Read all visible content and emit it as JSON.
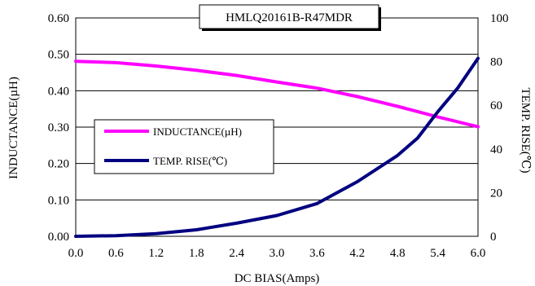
{
  "chart_data": {
    "type": "line",
    "title": "HMLQ20161B-R47MDR",
    "xlabel": "DC BIAS(Amps)",
    "ylabel_left": "INDUCTANCE(µH)",
    "ylabel_right": "TEMP. RISE(℃)",
    "xlim": [
      0,
      6
    ],
    "ylim_left": [
      0,
      0.6
    ],
    "ylim_right": [
      0,
      100
    ],
    "x_ticks": [
      "0.0",
      "0.6",
      "1.2",
      "1.8",
      "2.4",
      "3.0",
      "3.6",
      "4.2",
      "4.8",
      "5.4",
      "6.0"
    ],
    "y_left_ticks": [
      "0.00",
      "0.10",
      "0.20",
      "0.30",
      "0.40",
      "0.50",
      "0.60"
    ],
    "y_right_ticks": [
      "0",
      "20",
      "40",
      "60",
      "80",
      "100"
    ],
    "grid": "horizontal",
    "legend_position": "left-middle",
    "series": [
      {
        "name": "INDUCTANCE(µH)",
        "axis": "left",
        "color": "#ff00ff",
        "x": [
          0,
          0.6,
          1.2,
          1.8,
          2.4,
          3.0,
          3.6,
          4.2,
          4.8,
          5.4,
          6.0
        ],
        "values": [
          0.481,
          0.477,
          0.468,
          0.456,
          0.442,
          0.424,
          0.407,
          0.384,
          0.357,
          0.328,
          0.301
        ]
      },
      {
        "name": "TEMP. RISE(℃)",
        "axis": "right",
        "color": "#000080",
        "x": [
          0,
          0.6,
          1.2,
          1.8,
          2.4,
          3.0,
          3.6,
          4.2,
          4.8,
          5.1,
          5.4,
          5.7,
          6.0
        ],
        "values": [
          0,
          0.3,
          1.2,
          3,
          6,
          9.5,
          15,
          25,
          37,
          45,
          57,
          68,
          81.5
        ]
      }
    ]
  }
}
